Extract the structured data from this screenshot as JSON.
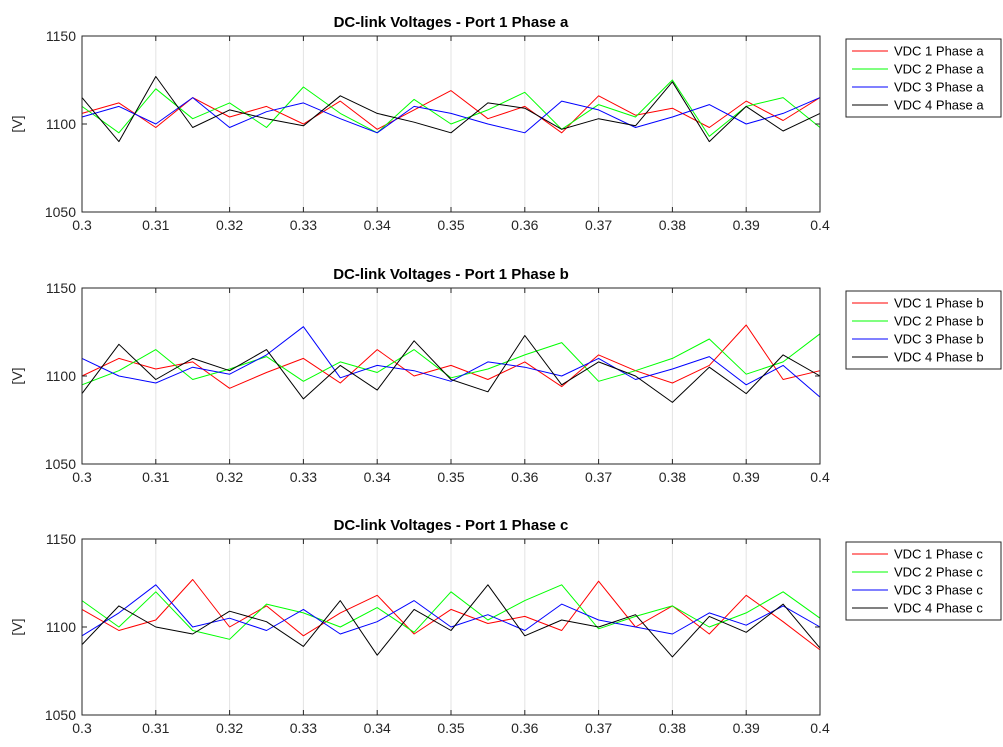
{
  "chart_data": [
    {
      "type": "line",
      "title": "DC-link Voltages - Port 1 Phase a",
      "xlabel": "",
      "ylabel": "[V]",
      "xlim": [
        0.3,
        0.4
      ],
      "ylim": [
        1050,
        1150
      ],
      "xticks": [
        "0.3",
        "0.31",
        "0.32",
        "0.33",
        "0.34",
        "0.35",
        "0.36",
        "0.37",
        "0.38",
        "0.39",
        "0.4"
      ],
      "yticks": [
        "1050",
        "1100",
        "1150"
      ],
      "grid": "vertical",
      "legend_position": "outside-right",
      "x": [
        0.3,
        0.305,
        0.31,
        0.315,
        0.32,
        0.325,
        0.33,
        0.335,
        0.34,
        0.345,
        0.35,
        0.355,
        0.36,
        0.365,
        0.37,
        0.375,
        0.38,
        0.385,
        0.39,
        0.395,
        0.4
      ],
      "series": [
        {
          "name": "VDC 1 Phase a",
          "color": "#ff0000",
          "values": [
            1106,
            1112,
            1098,
            1115,
            1104,
            1110,
            1100,
            1113,
            1097,
            1108,
            1119,
            1103,
            1110,
            1095,
            1116,
            1105,
            1109,
            1098,
            1113,
            1102,
            1115
          ]
        },
        {
          "name": "VDC 2 Phase a",
          "color": "#00ff00",
          "values": [
            1110,
            1095,
            1120,
            1103,
            1112,
            1098,
            1121,
            1106,
            1095,
            1114,
            1100,
            1108,
            1118,
            1097,
            1111,
            1104,
            1125,
            1093,
            1110,
            1115,
            1098
          ]
        },
        {
          "name": "VDC 3 Phase a",
          "color": "#0000ff",
          "values": [
            1104,
            1110,
            1100,
            1115,
            1098,
            1107,
            1112,
            1103,
            1095,
            1110,
            1106,
            1100,
            1095,
            1113,
            1108,
            1098,
            1104,
            1111,
            1100,
            1106,
            1115
          ]
        },
        {
          "name": "VDC 4 Phase a",
          "color": "#000000",
          "values": [
            1115,
            1090,
            1127,
            1098,
            1108,
            1103,
            1099,
            1116,
            1106,
            1101,
            1095,
            1112,
            1109,
            1097,
            1103,
            1099,
            1124,
            1090,
            1110,
            1096,
            1106
          ]
        }
      ]
    },
    {
      "type": "line",
      "title": "DC-link Voltages - Port 1 Phase b",
      "xlabel": "",
      "ylabel": "[V]",
      "xlim": [
        0.3,
        0.4
      ],
      "ylim": [
        1050,
        1150
      ],
      "xticks": [
        "0.3",
        "0.31",
        "0.32",
        "0.33",
        "0.34",
        "0.35",
        "0.36",
        "0.37",
        "0.38",
        "0.39",
        "0.4"
      ],
      "yticks": [
        "1050",
        "1100",
        "1150"
      ],
      "grid": "vertical",
      "legend_position": "outside-right",
      "x": [
        0.3,
        0.305,
        0.31,
        0.315,
        0.32,
        0.325,
        0.33,
        0.335,
        0.34,
        0.345,
        0.35,
        0.355,
        0.36,
        0.365,
        0.37,
        0.375,
        0.38,
        0.385,
        0.39,
        0.395,
        0.4
      ],
      "series": [
        {
          "name": "VDC 1 Phase b",
          "color": "#ff0000",
          "values": [
            1100,
            1110,
            1104,
            1108,
            1093,
            1102,
            1110,
            1096,
            1115,
            1100,
            1106,
            1098,
            1108,
            1094,
            1112,
            1103,
            1096,
            1106,
            1129,
            1098,
            1103
          ]
        },
        {
          "name": "VDC 2 Phase b",
          "color": "#00ff00",
          "values": [
            1095,
            1103,
            1115,
            1098,
            1104,
            1111,
            1097,
            1108,
            1102,
            1115,
            1099,
            1104,
            1112,
            1119,
            1097,
            1103,
            1110,
            1121,
            1101,
            1108,
            1124
          ]
        },
        {
          "name": "VDC 3 Phase b",
          "color": "#0000ff",
          "values": [
            1110,
            1100,
            1096,
            1105,
            1101,
            1112,
            1128,
            1099,
            1106,
            1103,
            1097,
            1108,
            1105,
            1100,
            1110,
            1098,
            1104,
            1111,
            1095,
            1106,
            1088
          ]
        },
        {
          "name": "VDC 4 Phase b",
          "color": "#000000",
          "values": [
            1090,
            1118,
            1098,
            1110,
            1103,
            1115,
            1087,
            1106,
            1092,
            1120,
            1098,
            1091,
            1123,
            1095,
            1108,
            1100,
            1085,
            1105,
            1090,
            1112,
            1100
          ]
        }
      ]
    },
    {
      "type": "line",
      "title": "DC-link Voltages - Port 1 Phase c",
      "xlabel": "",
      "ylabel": "[V]",
      "xlim": [
        0.3,
        0.4
      ],
      "ylim": [
        1050,
        1150
      ],
      "xticks": [
        "0.3",
        "0.31",
        "0.32",
        "0.33",
        "0.34",
        "0.35",
        "0.36",
        "0.37",
        "0.38",
        "0.39",
        "0.4"
      ],
      "yticks": [
        "1050",
        "1100",
        "1150"
      ],
      "grid": "vertical",
      "legend_position": "outside-right",
      "x": [
        0.3,
        0.305,
        0.31,
        0.315,
        0.32,
        0.325,
        0.33,
        0.335,
        0.34,
        0.345,
        0.35,
        0.355,
        0.36,
        0.365,
        0.37,
        0.375,
        0.38,
        0.385,
        0.39,
        0.395,
        0.4
      ],
      "series": [
        {
          "name": "VDC 1 Phase c",
          "color": "#ff0000",
          "values": [
            1110,
            1098,
            1104,
            1127,
            1100,
            1112,
            1095,
            1108,
            1118,
            1096,
            1110,
            1102,
            1106,
            1098,
            1126,
            1100,
            1112,
            1096,
            1118,
            1103,
            1087
          ]
        },
        {
          "name": "VDC 2 Phase c",
          "color": "#00ff00",
          "values": [
            1115,
            1100,
            1120,
            1098,
            1093,
            1113,
            1108,
            1100,
            1111,
            1097,
            1120,
            1104,
            1115,
            1124,
            1099,
            1106,
            1112,
            1100,
            1108,
            1120,
            1105
          ]
        },
        {
          "name": "VDC 3 Phase c",
          "color": "#0000ff",
          "values": [
            1095,
            1108,
            1124,
            1100,
            1105,
            1098,
            1110,
            1096,
            1103,
            1115,
            1100,
            1107,
            1098,
            1113,
            1104,
            1100,
            1096,
            1108,
            1101,
            1112,
            1100
          ]
        },
        {
          "name": "VDC 4 Phase c",
          "color": "#000000",
          "values": [
            1090,
            1112,
            1100,
            1096,
            1109,
            1103,
            1089,
            1115,
            1084,
            1110,
            1098,
            1124,
            1095,
            1104,
            1100,
            1107,
            1083,
            1106,
            1097,
            1113,
            1088
          ]
        }
      ]
    }
  ]
}
